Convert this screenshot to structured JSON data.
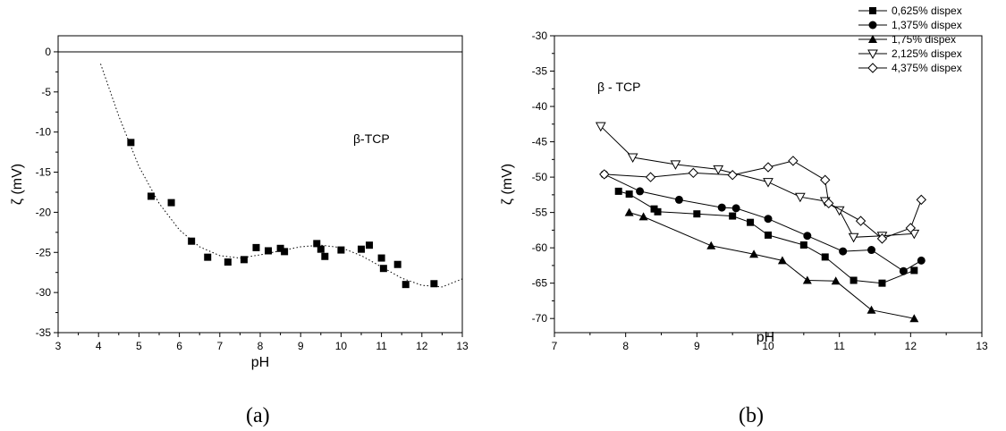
{
  "chart_data": [
    {
      "type": "scatter",
      "panel_label": "(a)",
      "xlabel": "pH",
      "ylabel": "ζ (mV)",
      "annotation": "β-TCP",
      "xlim": [
        3,
        13
      ],
      "ylim": [
        -35,
        2
      ],
      "xticks": [
        3,
        4,
        5,
        6,
        7,
        8,
        9,
        10,
        11,
        12,
        13
      ],
      "yticks": [
        0,
        -5,
        -10,
        -15,
        -20,
        -25,
        -30,
        -35
      ],
      "zero_line": true,
      "series": [
        {
          "marker": "square-filled",
          "x": [
            4.8,
            5.3,
            5.8,
            6.3,
            6.7,
            7.2,
            7.6,
            7.9,
            8.2,
            8.5,
            8.6,
            9.4,
            9.5,
            9.6,
            10.0,
            10.5,
            10.7,
            11.0,
            11.05,
            11.4,
            11.6,
            12.3
          ],
          "y": [
            -11.3,
            -18.0,
            -18.8,
            -23.6,
            -25.6,
            -26.2,
            -25.9,
            -24.4,
            -24.8,
            -24.5,
            -24.9,
            -23.9,
            -24.6,
            -25.5,
            -24.7,
            -24.6,
            -24.1,
            -25.7,
            -27.0,
            -26.5,
            -29.0,
            -28.9
          ]
        }
      ],
      "fit_curve": {
        "style": "dotted",
        "x": [
          4.05,
          4.5,
          5.0,
          5.5,
          6.0,
          6.5,
          7.0,
          7.5,
          8.0,
          8.5,
          9.0,
          9.5,
          10.0,
          10.5,
          11.0,
          11.5,
          12.0,
          12.5,
          13.0
        ],
        "y": [
          -1.5,
          -8.0,
          -14.3,
          -18.9,
          -22.2,
          -24.3,
          -25.4,
          -25.7,
          -25.3,
          -24.8,
          -24.3,
          -24.1,
          -24.4,
          -25.4,
          -26.8,
          -28.2,
          -29.1,
          -29.3,
          -28.3
        ]
      }
    },
    {
      "type": "line",
      "panel_label": "(b)",
      "xlabel": "pH",
      "ylabel": "ζ (mV)",
      "annotation": "β - TCP",
      "xlim": [
        7,
        13
      ],
      "ylim": [
        -72,
        -30
      ],
      "xticks": [
        7,
        8,
        9,
        10,
        11,
        12,
        13
      ],
      "yticks": [
        -30,
        -35,
        -40,
        -45,
        -50,
        -55,
        -60,
        -65,
        -70
      ],
      "legend_position": "top-right",
      "series": [
        {
          "name": "0,625% dispex",
          "marker": "square-filled",
          "x": [
            7.9,
            8.05,
            8.4,
            8.45,
            9.0,
            9.5,
            9.75,
            10.0,
            10.5,
            10.8,
            11.2,
            11.6,
            12.05
          ],
          "y": [
            -52.0,
            -52.4,
            -54.5,
            -54.9,
            -55.2,
            -55.5,
            -56.4,
            -58.2,
            -59.6,
            -61.3,
            -64.6,
            -65.0,
            -63.2
          ]
        },
        {
          "name": "1,375% dispex",
          "marker": "circle-filled",
          "x": [
            7.7,
            8.2,
            8.75,
            9.35,
            9.55,
            10.0,
            10.55,
            11.05,
            11.45,
            11.9,
            12.15
          ],
          "y": [
            -49.6,
            -52.0,
            -53.2,
            -54.3,
            -54.4,
            -55.9,
            -58.3,
            -60.5,
            -60.3,
            -63.3,
            -61.8
          ]
        },
        {
          "name": "1,75% dispex",
          "marker": "triangle-filled",
          "x": [
            8.05,
            8.25,
            9.2,
            9.8,
            10.2,
            10.55,
            10.95,
            11.45,
            12.05
          ],
          "y": [
            -55.0,
            -55.6,
            -59.7,
            -60.9,
            -61.8,
            -64.6,
            -64.7,
            -68.8,
            -70.0
          ]
        },
        {
          "name": "2,125% dispex",
          "marker": "triangle-down-open",
          "x": [
            7.65,
            8.1,
            8.7,
            9.3,
            10.0,
            10.45,
            10.8,
            11.0,
            11.2,
            11.6,
            12.05
          ],
          "y": [
            -42.8,
            -47.2,
            -48.2,
            -48.9,
            -50.7,
            -52.8,
            -53.4,
            -54.7,
            -58.5,
            -58.3,
            -58.0
          ]
        },
        {
          "name": "4,375% dispex",
          "marker": "diamond-open",
          "x": [
            7.7,
            8.35,
            8.95,
            9.5,
            10.0,
            10.35,
            10.8,
            10.85,
            11.3,
            11.6,
            12.0,
            12.15
          ],
          "y": [
            -49.6,
            -50.0,
            -49.4,
            -49.7,
            -48.6,
            -47.7,
            -50.4,
            -53.7,
            -56.2,
            -58.7,
            -57.2,
            -53.2
          ]
        }
      ]
    }
  ]
}
